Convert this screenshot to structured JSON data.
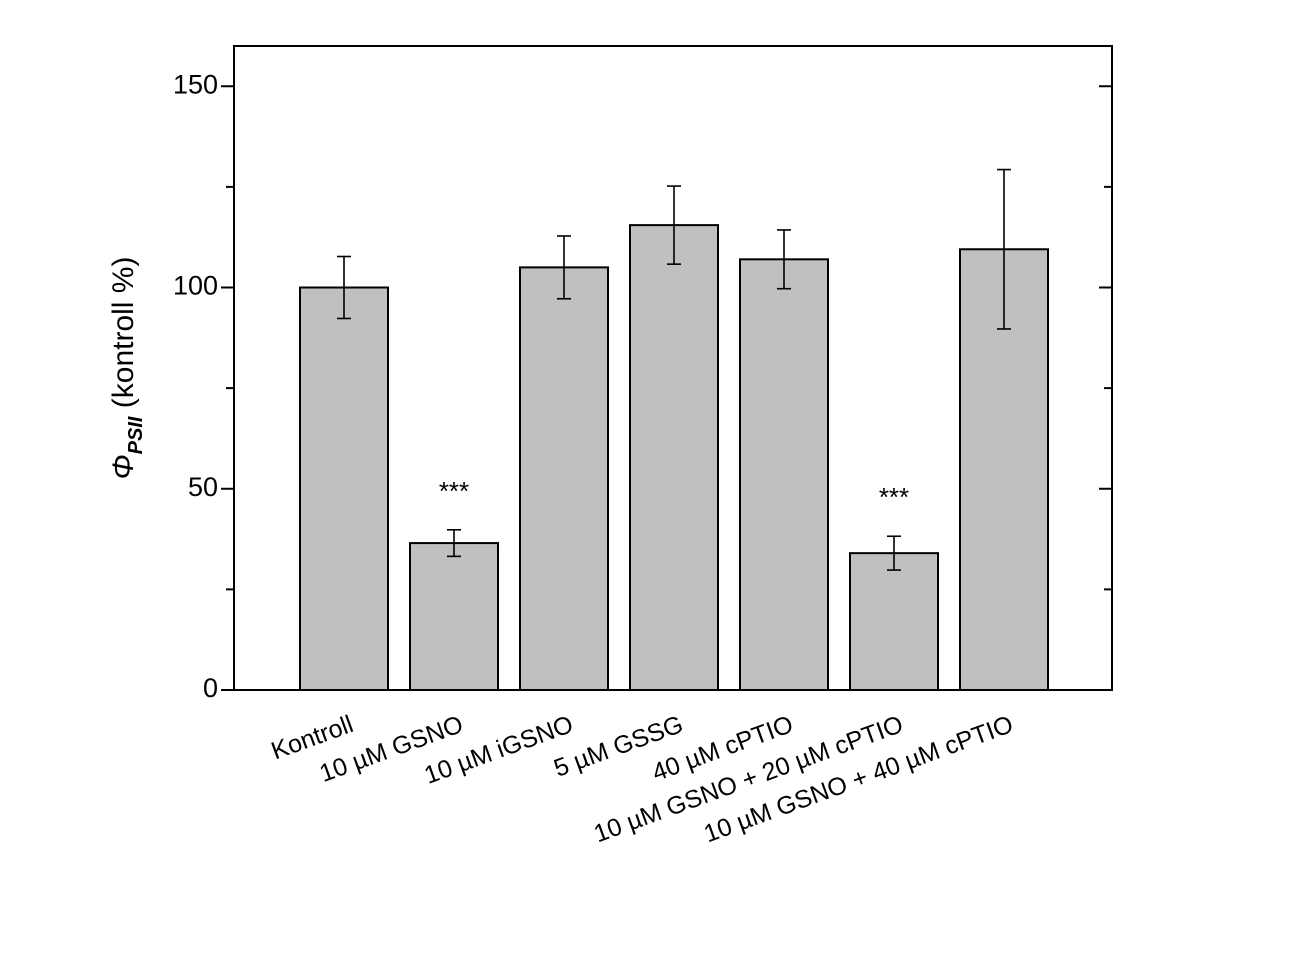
{
  "chart_data": {
    "type": "bar",
    "categories": [
      "Kontroll",
      "10 µM GSNO",
      "10 µM iGSNO",
      "5 µM GSSG",
      "40 µM cPTIO",
      "10 µM GSNO + 20 µM cPTIO",
      "10 µM GSNO + 40 µM cPTIO"
    ],
    "values": [
      100,
      36.5,
      105,
      115.5,
      107,
      34,
      109.5
    ],
    "errors": [
      7.7,
      3.3,
      7.8,
      9.7,
      7.3,
      4.2,
      19.8
    ],
    "significance": [
      "",
      "***",
      "",
      "",
      "",
      "***",
      ""
    ],
    "ylabel": {
      "symbol": "Φ",
      "subscript": "PSII",
      "text": " (kontroll %)"
    },
    "xlabel": "",
    "title": "",
    "ylim": [
      0,
      160
    ],
    "yticks": [
      0,
      50,
      100,
      150
    ],
    "bar_color": "#c0c0c0",
    "edge_color": "#000000",
    "grid": false,
    "legend": "none"
  }
}
